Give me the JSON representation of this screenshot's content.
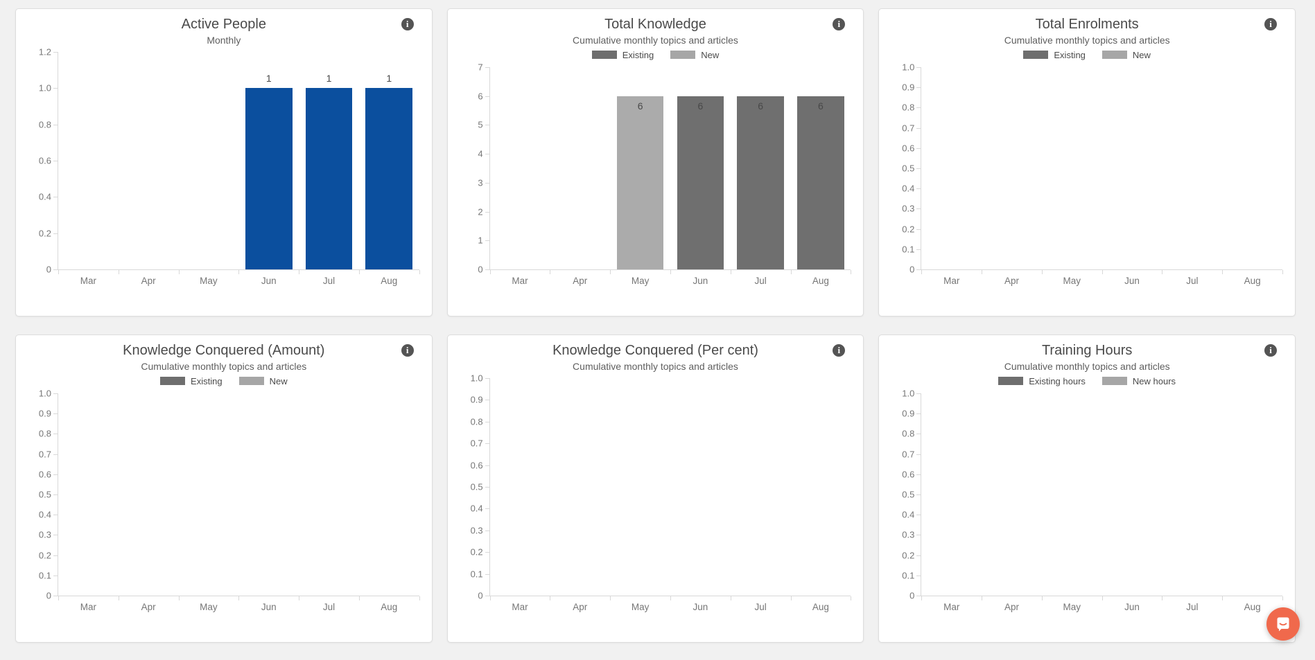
{
  "page": {
    "background": "#f1f1f1"
  },
  "icons": {
    "info_glyph": "i",
    "chat_icon": "chat-bubble"
  },
  "chat_launcher": {
    "color": "#f0694c"
  },
  "chart_data": [
    {
      "type": "bar",
      "title": "Active People",
      "subtitle": "Monthly",
      "legend": [],
      "categories": [
        "Mar",
        "Apr",
        "May",
        "Jun",
        "Jul",
        "Aug"
      ],
      "values": [
        null,
        null,
        null,
        1,
        1,
        1
      ],
      "bar_colors": [
        null,
        null,
        null,
        "#0b4f9e",
        "#0b4f9e",
        "#0b4f9e"
      ],
      "value_labels": [
        null,
        null,
        null,
        "1",
        "1",
        "1"
      ],
      "value_label_position": "above",
      "ylim": [
        0,
        1.2
      ],
      "ytick_labels": [
        "1.2",
        "1.0",
        "0.8",
        "0.6",
        "0.4",
        "0.2",
        "0"
      ],
      "grid": false,
      "legend_position": "top"
    },
    {
      "type": "bar",
      "title": "Total Knowledge",
      "subtitle": "Cumulative monthly topics and articles",
      "legend": [
        {
          "label": "Existing",
          "color": "#6e6e6e"
        },
        {
          "label": "New",
          "color": "#a6a6a6"
        }
      ],
      "categories": [
        "Mar",
        "Apr",
        "May",
        "Jun",
        "Jul",
        "Aug"
      ],
      "values": [
        null,
        null,
        6,
        6,
        6,
        6
      ],
      "bar_colors": [
        null,
        null,
        "#ababab",
        "#6f6f6f",
        "#6f6f6f",
        "#6f6f6f"
      ],
      "value_labels": [
        null,
        null,
        "6",
        "6",
        "6",
        "6"
      ],
      "value_label_position": "inside",
      "ylim": [
        0,
        7
      ],
      "ytick_labels": [
        "7",
        "6",
        "5",
        "4",
        "3",
        "2",
        "1",
        "0"
      ],
      "grid": false,
      "legend_position": "top"
    },
    {
      "type": "bar",
      "title": "Total Enrolments",
      "subtitle": "Cumulative monthly topics and articles",
      "legend": [
        {
          "label": "Existing",
          "color": "#6e6e6e"
        },
        {
          "label": "New",
          "color": "#a6a6a6"
        }
      ],
      "categories": [
        "Mar",
        "Apr",
        "May",
        "Jun",
        "Jul",
        "Aug"
      ],
      "values": [
        null,
        null,
        null,
        null,
        null,
        null
      ],
      "bar_colors": [
        null,
        null,
        null,
        null,
        null,
        null
      ],
      "value_labels": [
        null,
        null,
        null,
        null,
        null,
        null
      ],
      "value_label_position": "above",
      "ylim": [
        0,
        1
      ],
      "ytick_labels": [
        "1.0",
        "0.9",
        "0.8",
        "0.7",
        "0.6",
        "0.5",
        "0.4",
        "0.3",
        "0.2",
        "0.1",
        "0"
      ],
      "grid": false,
      "legend_position": "top"
    },
    {
      "type": "bar",
      "title": "Knowledge Conquered (Amount)",
      "subtitle": "Cumulative monthly topics and articles",
      "legend": [
        {
          "label": "Existing",
          "color": "#6e6e6e"
        },
        {
          "label": "New",
          "color": "#a6a6a6"
        }
      ],
      "categories": [
        "Mar",
        "Apr",
        "May",
        "Jun",
        "Jul",
        "Aug"
      ],
      "values": [
        null,
        null,
        null,
        null,
        null,
        null
      ],
      "bar_colors": [
        null,
        null,
        null,
        null,
        null,
        null
      ],
      "value_labels": [
        null,
        null,
        null,
        null,
        null,
        null
      ],
      "value_label_position": "above",
      "ylim": [
        0,
        1
      ],
      "ytick_labels": [
        "1.0",
        "0.9",
        "0.8",
        "0.7",
        "0.6",
        "0.5",
        "0.4",
        "0.3",
        "0.2",
        "0.1",
        "0"
      ],
      "grid": false,
      "legend_position": "top"
    },
    {
      "type": "bar",
      "title": "Knowledge Conquered (Per cent)",
      "subtitle": "Cumulative monthly topics and articles",
      "legend": [],
      "categories": [
        "Mar",
        "Apr",
        "May",
        "Jun",
        "Jul",
        "Aug"
      ],
      "values": [
        null,
        null,
        null,
        null,
        null,
        null
      ],
      "bar_colors": [
        null,
        null,
        null,
        null,
        null,
        null
      ],
      "value_labels": [
        null,
        null,
        null,
        null,
        null,
        null
      ],
      "value_label_position": "above",
      "ylim": [
        0,
        1
      ],
      "ytick_labels": [
        "1.0",
        "0.9",
        "0.8",
        "0.7",
        "0.6",
        "0.5",
        "0.4",
        "0.3",
        "0.2",
        "0.1",
        "0"
      ],
      "grid": false,
      "legend_position": "top"
    },
    {
      "type": "bar",
      "title": "Training Hours",
      "subtitle": "Cumulative monthly topics and articles",
      "legend": [
        {
          "label": "Existing hours",
          "color": "#6e6e6e"
        },
        {
          "label": "New hours",
          "color": "#a6a6a6"
        }
      ],
      "categories": [
        "Mar",
        "Apr",
        "May",
        "Jun",
        "Jul",
        "Aug"
      ],
      "values": [
        null,
        null,
        null,
        null,
        null,
        null
      ],
      "bar_colors": [
        null,
        null,
        null,
        null,
        null,
        null
      ],
      "value_labels": [
        null,
        null,
        null,
        null,
        null,
        null
      ],
      "value_label_position": "above",
      "ylim": [
        0,
        1
      ],
      "ytick_labels": [
        "1.0",
        "0.9",
        "0.8",
        "0.7",
        "0.6",
        "0.5",
        "0.4",
        "0.3",
        "0.2",
        "0.1",
        "0"
      ],
      "grid": false,
      "legend_position": "top"
    }
  ]
}
